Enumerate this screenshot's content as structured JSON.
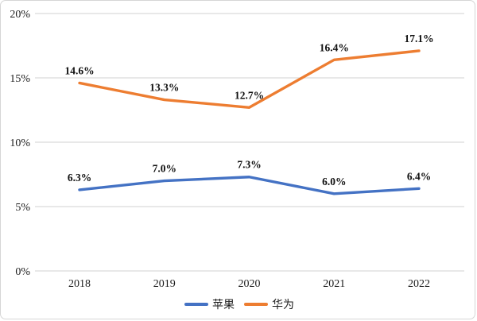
{
  "chart_data": {
    "type": "line",
    "categories": [
      "2018",
      "2019",
      "2020",
      "2021",
      "2022"
    ],
    "series": [
      {
        "name": "苹果",
        "color": "#4472C4",
        "values": [
          6.3,
          7.0,
          7.3,
          6.0,
          6.4
        ],
        "labels": [
          "6.3%",
          "7.0%",
          "7.3%",
          "6.0%",
          "6.4%"
        ]
      },
      {
        "name": "华为",
        "color": "#ED7D31",
        "values": [
          14.6,
          13.3,
          12.7,
          16.4,
          17.1
        ],
        "labels": [
          "14.6%",
          "13.3%",
          "12.7%",
          "16.4%",
          "17.1%"
        ]
      }
    ],
    "yticks": [
      {
        "value": 0,
        "label": "0%"
      },
      {
        "value": 5,
        "label": "5%"
      },
      {
        "value": 10,
        "label": "10%"
      },
      {
        "value": 15,
        "label": "15%"
      },
      {
        "value": 20,
        "label": "20%"
      }
    ],
    "ylim": [
      0,
      20
    ],
    "grid": true,
    "legend_position": "bottom",
    "title": "",
    "xlabel": "",
    "ylabel": ""
  },
  "colors": {
    "grid": "#d9d9d9",
    "text": "#1c1c1c",
    "background": "#ffffff",
    "card_border": "#d6d6d6"
  }
}
